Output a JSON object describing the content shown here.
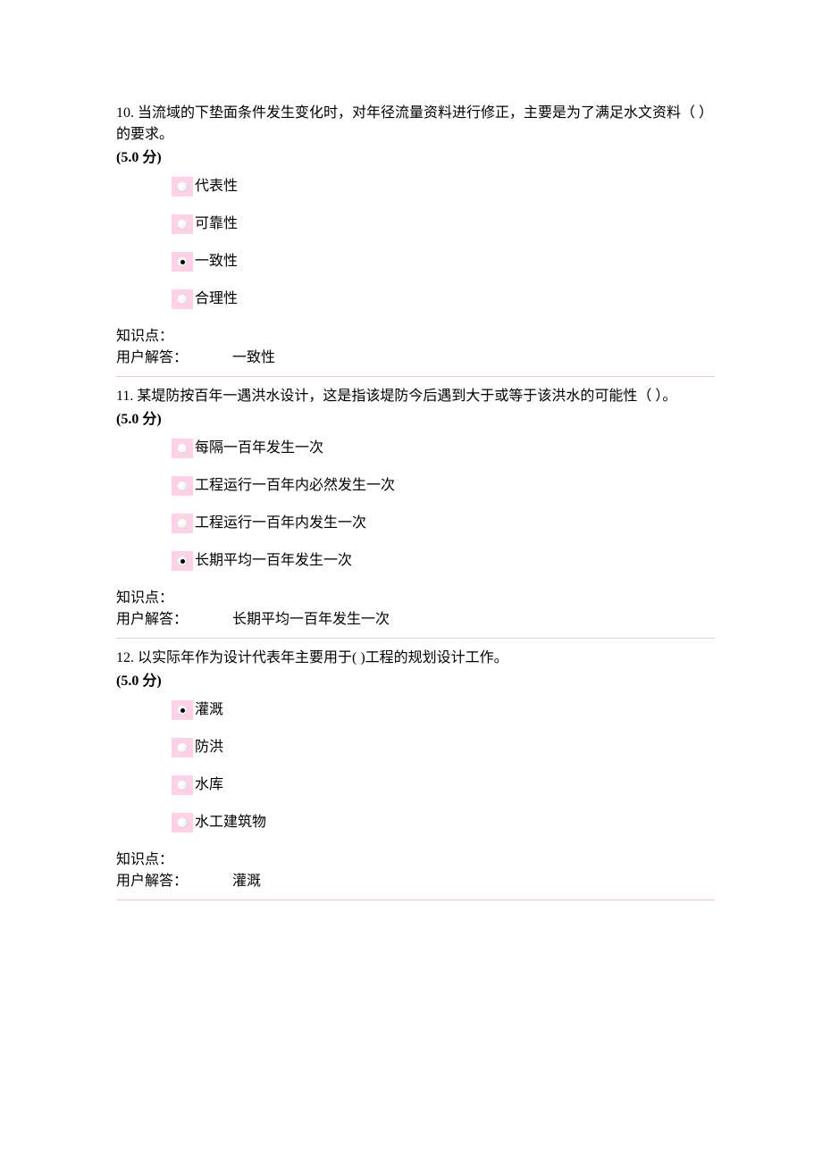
{
  "colors": {
    "radio_bg": "#ffd0e8",
    "divider": "#f9c0e0",
    "page_bg": "#ffffff",
    "text": "#000000",
    "radio_dot": "#000000"
  },
  "typography": {
    "body_fontsize": 16,
    "points_weight": "bold"
  },
  "meta_labels": {
    "knowledge": "知识点：",
    "user_answer": "用户解答："
  },
  "questions": [
    {
      "number": "10.",
      "text": "当流域的下垫面条件发生变化时，对年径流量资料进行修正，主要是为了满足水文资料（ ）的要求。",
      "points": "(5.0 分)",
      "options": [
        "代表性",
        "可靠性",
        "一致性",
        "合理性"
      ],
      "selected_index": 2,
      "answer": "一致性"
    },
    {
      "number": "11.",
      "text": "某堤防按百年一遇洪水设计，这是指该堤防今后遇到大于或等于该洪水的可能性（ ）。",
      "points": "(5.0 分)",
      "options": [
        "每隔一百年发生一次",
        "工程运行一百年内必然发生一次",
        "工程运行一百年内发生一次",
        "长期平均一百年发生一次"
      ],
      "selected_index": 3,
      "answer": "长期平均一百年发生一次"
    },
    {
      "number": "12.",
      "text": "以实际年作为设计代表年主要用于( )工程的规划设计工作。",
      "points": "(5.0 分)",
      "options": [
        "灌溉",
        "防洪",
        "水库",
        "水工建筑物"
      ],
      "selected_index": 0,
      "answer": "灌溉"
    }
  ]
}
